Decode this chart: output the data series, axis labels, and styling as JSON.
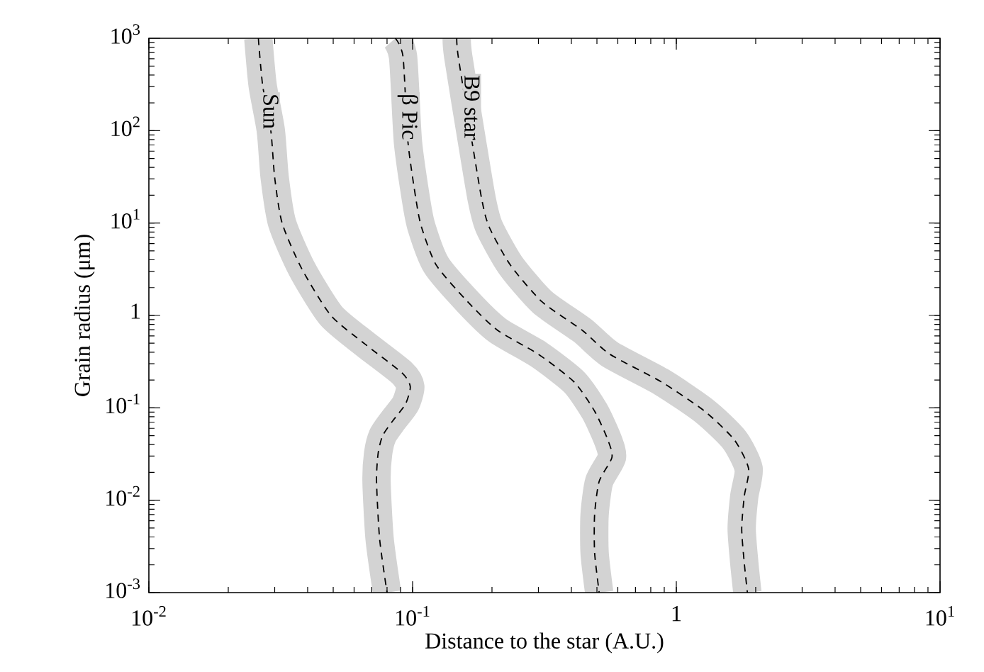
{
  "chart_data": {
    "type": "line",
    "xlabel": "Distance to the star (A.U.)",
    "ylabel": "Grain radius (μm)",
    "log": "xy",
    "line_style": "dashed",
    "xlim": [
      0.01,
      10
    ],
    "ylim": [
      0.001,
      1000
    ],
    "xticks": [
      {
        "value": 0.01,
        "label": "10$^{-2}$"
      },
      {
        "value": 0.1,
        "label": "10$^{-1}$"
      },
      1,
      {
        "value": 10,
        "label": "10$^{1}$"
      }
    ],
    "yticks": [
      {
        "value": 0.001,
        "label": "10$^{-3}$"
      },
      {
        "value": 0.01,
        "label": "10$^{-2}$"
      },
      {
        "value": 0.1,
        "label": "10$^{-1}$"
      },
      1,
      {
        "value": 10,
        "label": "10$^{1}$"
      },
      {
        "value": 100,
        "label": "10$^{2}$"
      },
      {
        "value": 1000,
        "label": "10$^{3}$"
      }
    ],
    "series": [
      {
        "name": "Sun",
        "color": "#000000",
        "x": [
          0.026,
          0.027,
          0.029,
          0.03,
          0.032,
          0.038,
          0.049,
          0.066,
          0.091,
          0.098,
          0.094,
          0.084,
          0.077,
          0.074,
          0.073,
          0.075,
          0.08
        ],
        "values": [
          1000,
          310,
          100,
          31,
          10,
          3.2,
          1,
          0.49,
          0.24,
          0.17,
          0.11,
          0.072,
          0.05,
          0.032,
          0.016,
          0.0038,
          0.001
        ]
      },
      {
        "name": "β Pic",
        "color": "#000000",
        "x": [
          0.086,
          0.092,
          0.096,
          0.103,
          0.108,
          0.123,
          0.162,
          0.21,
          0.3,
          0.41,
          0.49,
          0.55,
          0.57,
          0.51,
          0.49,
          0.49,
          0.51
        ],
        "values": [
          1000,
          630,
          76,
          18,
          9.1,
          3.5,
          1.4,
          0.69,
          0.38,
          0.19,
          0.092,
          0.045,
          0.029,
          0.016,
          0.007,
          0.0027,
          0.001
        ]
      },
      {
        "name": "B9 star",
        "color": "#000000",
        "x": [
          0.147,
          0.149,
          0.168,
          0.183,
          0.195,
          0.235,
          0.31,
          0.44,
          0.56,
          0.88,
          1.28,
          1.66,
          1.88,
          1.81,
          1.77,
          1.81,
          1.86
        ],
        "values": [
          1000,
          630,
          76,
          18,
          9.1,
          3.5,
          1.4,
          0.69,
          0.38,
          0.19,
          0.092,
          0.045,
          0.022,
          0.011,
          0.0049,
          0.0021,
          0.001
        ]
      }
    ]
  }
}
